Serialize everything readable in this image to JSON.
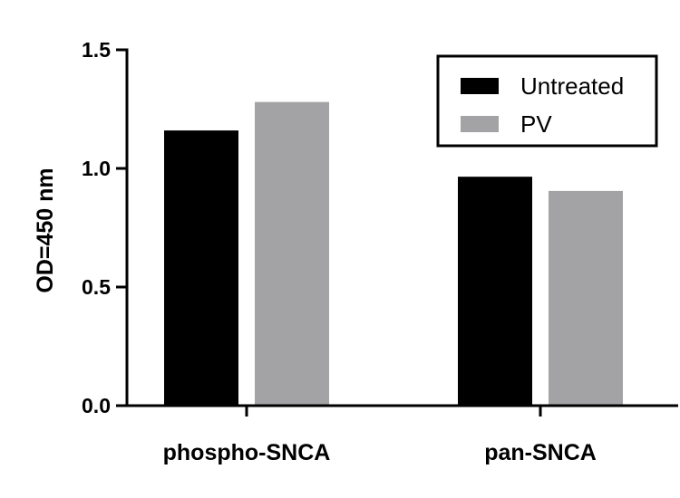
{
  "chart_data": {
    "type": "bar",
    "title": "",
    "xlabel": "",
    "ylabel": "OD=450 nm",
    "categories": [
      "phospho-SNCA",
      "pan-SNCA"
    ],
    "series": [
      {
        "name": "Untreated",
        "color": "#000000",
        "values": [
          1.16,
          0.965
        ]
      },
      {
        "name": "PV",
        "color": "#a3a3a5",
        "values": [
          1.28,
          0.905
        ]
      }
    ],
    "ylim": [
      0,
      1.5
    ],
    "yticks": [
      0.0,
      0.5,
      1.0,
      1.5
    ],
    "ytick_labels": [
      "0.0",
      "0.5",
      "1.0",
      "1.5"
    ],
    "grid": false,
    "legend": {
      "position": "top-right",
      "framed": true
    }
  }
}
